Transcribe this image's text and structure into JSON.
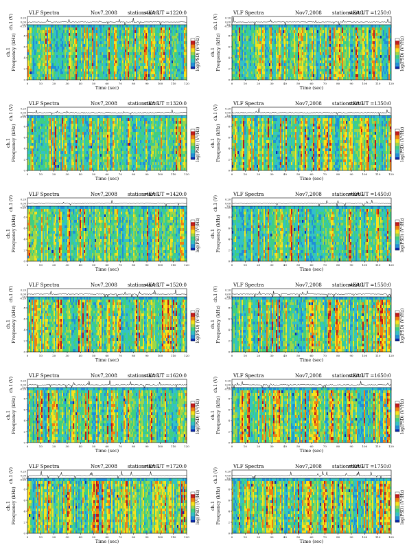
{
  "page": {
    "background": "#ffffff"
  },
  "chart_data": {
    "type": "heatmap",
    "panels": [
      {
        "title_left": "VLF Spectra",
        "title_date": "Nov7,2008",
        "title_station": "station=KAG",
        "title_start": "start UT =1220:0",
        "intensity": 0.55
      },
      {
        "title_left": "VLF Spectra",
        "title_date": "Nov7,2008",
        "title_station": "station=KAG",
        "title_start": "start UT =1250:0",
        "intensity": 0.55
      },
      {
        "title_left": "VLF Spectra",
        "title_date": "Nov7,2008",
        "title_station": "station=KAG",
        "title_start": "start UT =1320:0",
        "intensity": 0.45
      },
      {
        "title_left": "VLF Spectra",
        "title_date": "Nov7,2008",
        "title_station": "station=KAG",
        "title_start": "start UT =1350:0",
        "intensity": 0.5
      },
      {
        "title_left": "VLF Spectra",
        "title_date": "Nov7,2008",
        "title_station": "station=KAG",
        "title_start": "start UT =1420:0",
        "intensity": 0.45
      },
      {
        "title_left": "VLF Spectra",
        "title_date": "Nov7,2008",
        "title_station": "station=KAG",
        "title_start": "start UT =1450:0",
        "intensity": 0.5
      },
      {
        "title_left": "VLF Spectra",
        "title_date": "Nov7,2008",
        "title_station": "station=KAG",
        "title_start": "start UT =1520:0",
        "intensity": 0.7
      },
      {
        "title_left": "VLF Spectra",
        "title_date": "Nov7,2008",
        "title_station": "station=KAG",
        "title_start": "start UT =1550:0",
        "intensity": 0.65
      },
      {
        "title_left": "VLF Spectra",
        "title_date": "Nov7,2008",
        "title_station": "station=KAG",
        "title_start": "start UT =1620:0",
        "intensity": 0.6
      },
      {
        "title_left": "VLF Spectra",
        "title_date": "Nov7,2008",
        "title_station": "station=KAG",
        "title_start": "start UT =1650:0",
        "intensity": 0.75
      },
      {
        "title_left": "VLF Spectra",
        "title_date": "Nov7,2008",
        "title_station": "station=KAG",
        "title_start": "start UT =1720:0",
        "intensity": 0.8
      },
      {
        "title_left": "VLF Spectra",
        "title_date": "Nov7,2008",
        "title_station": "station=KAG",
        "title_start": "start UT =1750:0",
        "intensity": 0.9
      }
    ],
    "xlabel": "Time (sec)",
    "ylabel_spec": "Frequency (kHz)",
    "ylabel_channel": "ch.1",
    "ylabel_wave": "ch.1 (V)",
    "colorbar_label": "log(PSD) (V²/Hz)",
    "x_ticks": [
      "0",
      "10",
      "20",
      "30",
      "40",
      "50",
      "60",
      "70",
      "80",
      "90",
      "100",
      "110",
      "120"
    ],
    "y_ticks": [
      "0",
      "2",
      "4",
      "6",
      "8",
      "10"
    ],
    "wave_ticks": [
      "0.20",
      "0.00",
      "-0.20"
    ],
    "xlim": [
      0,
      120
    ],
    "ylim": [
      0,
      10
    ],
    "colormap": [
      "#ffffff",
      "#c01818",
      "#f08010",
      "#f7e21c",
      "#9bd64a",
      "#3fcf82",
      "#33c2c6",
      "#1f8fd8",
      "#0b2bb0"
    ]
  }
}
